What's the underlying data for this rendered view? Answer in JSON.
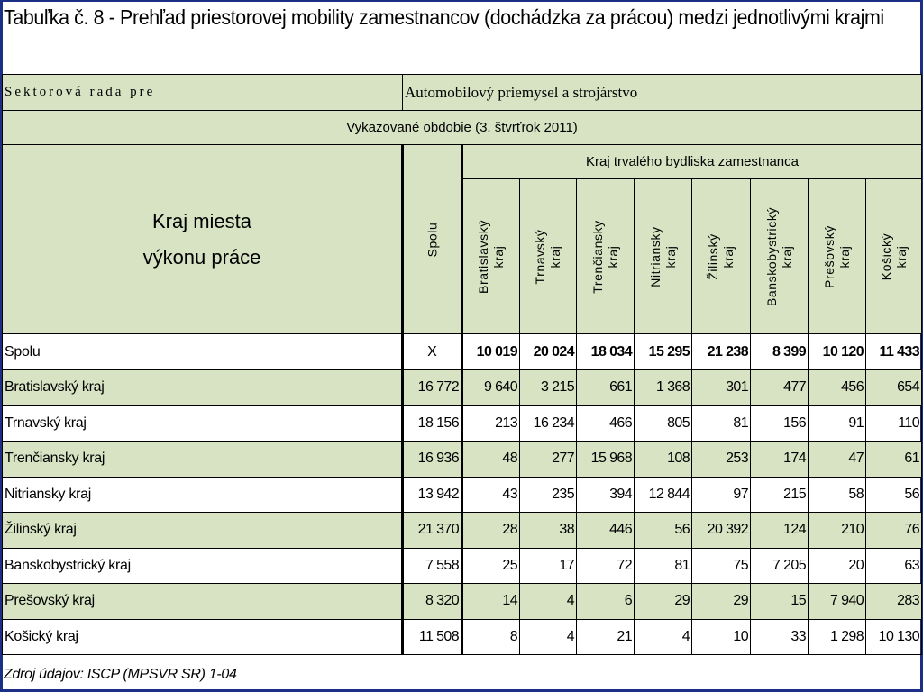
{
  "title": "Tabuľka č. 8 - Prehľad priestorovej mobility zamestnancov (dochádzka za prácou) medzi jednotlivými krajmi",
  "sector": {
    "label": "Sektorová rada pre",
    "value": "Automobilový priemysel a strojárstvo"
  },
  "period": "Vykazované obdobie (3. štvrťrok 2011)",
  "header": {
    "row_header_line1": "Kraj miesta",
    "row_header_line2": "výkonu práce",
    "spolu": "Spolu",
    "group": "Kraj trvalého bydliska zamestnanca",
    "columns": [
      {
        "line1": "Bratislavský",
        "line2": "kraj"
      },
      {
        "line1": "Trnavský",
        "line2": "kraj"
      },
      {
        "line1": "Trenčiansky",
        "line2": "kraj"
      },
      {
        "line1": "Nitriansky",
        "line2": "kraj"
      },
      {
        "line1": "Žilinský",
        "line2": "kraj"
      },
      {
        "line1": "Banskobystrický",
        "line2": "kraj"
      },
      {
        "line1": "Prešovský",
        "line2": "kraj"
      },
      {
        "line1": "Košický",
        "line2": "kraj"
      }
    ]
  },
  "total_row": {
    "label": "Spolu",
    "spolu": "X",
    "values": [
      "10 019",
      "20 024",
      "18 034",
      "15 295",
      "21 238",
      "8 399",
      "10 120",
      "11 433"
    ]
  },
  "rows": [
    {
      "label": "Bratislavský kraj",
      "spolu": "16 772",
      "values": [
        "9 640",
        "3 215",
        "661",
        "1 368",
        "301",
        "477",
        "456",
        "654"
      ]
    },
    {
      "label": "Trnavský kraj",
      "spolu": "18 156",
      "values": [
        "213",
        "16 234",
        "466",
        "805",
        "81",
        "156",
        "91",
        "110"
      ]
    },
    {
      "label": "Trenčiansky kraj",
      "spolu": "16 936",
      "values": [
        "48",
        "277",
        "15 968",
        "108",
        "253",
        "174",
        "47",
        "61"
      ]
    },
    {
      "label": "Nitriansky kraj",
      "spolu": "13 942",
      "values": [
        "43",
        "235",
        "394",
        "12 844",
        "97",
        "215",
        "58",
        "56"
      ]
    },
    {
      "label": "Žilinský kraj",
      "spolu": "21 370",
      "values": [
        "28",
        "38",
        "446",
        "56",
        "20 392",
        "124",
        "210",
        "76"
      ]
    },
    {
      "label": "Banskobystrický kraj",
      "spolu": "7 558",
      "values": [
        "25",
        "17",
        "72",
        "81",
        "75",
        "7 205",
        "20",
        "63"
      ]
    },
    {
      "label": "Prešovský kraj",
      "spolu": "8 320",
      "values": [
        "14",
        "4",
        "6",
        "29",
        "29",
        "15",
        "7 940",
        "283"
      ]
    },
    {
      "label": "Košický kraj",
      "spolu": "11 508",
      "values": [
        "8",
        "4",
        "21",
        "4",
        "10",
        "33",
        "1 298",
        "10 130"
      ]
    }
  ],
  "source": "Zdroj údajov: ISCP (MPSVR SR) 1-04",
  "colors": {
    "shade": "#d8e3c4",
    "frame": "#1c2f86"
  }
}
